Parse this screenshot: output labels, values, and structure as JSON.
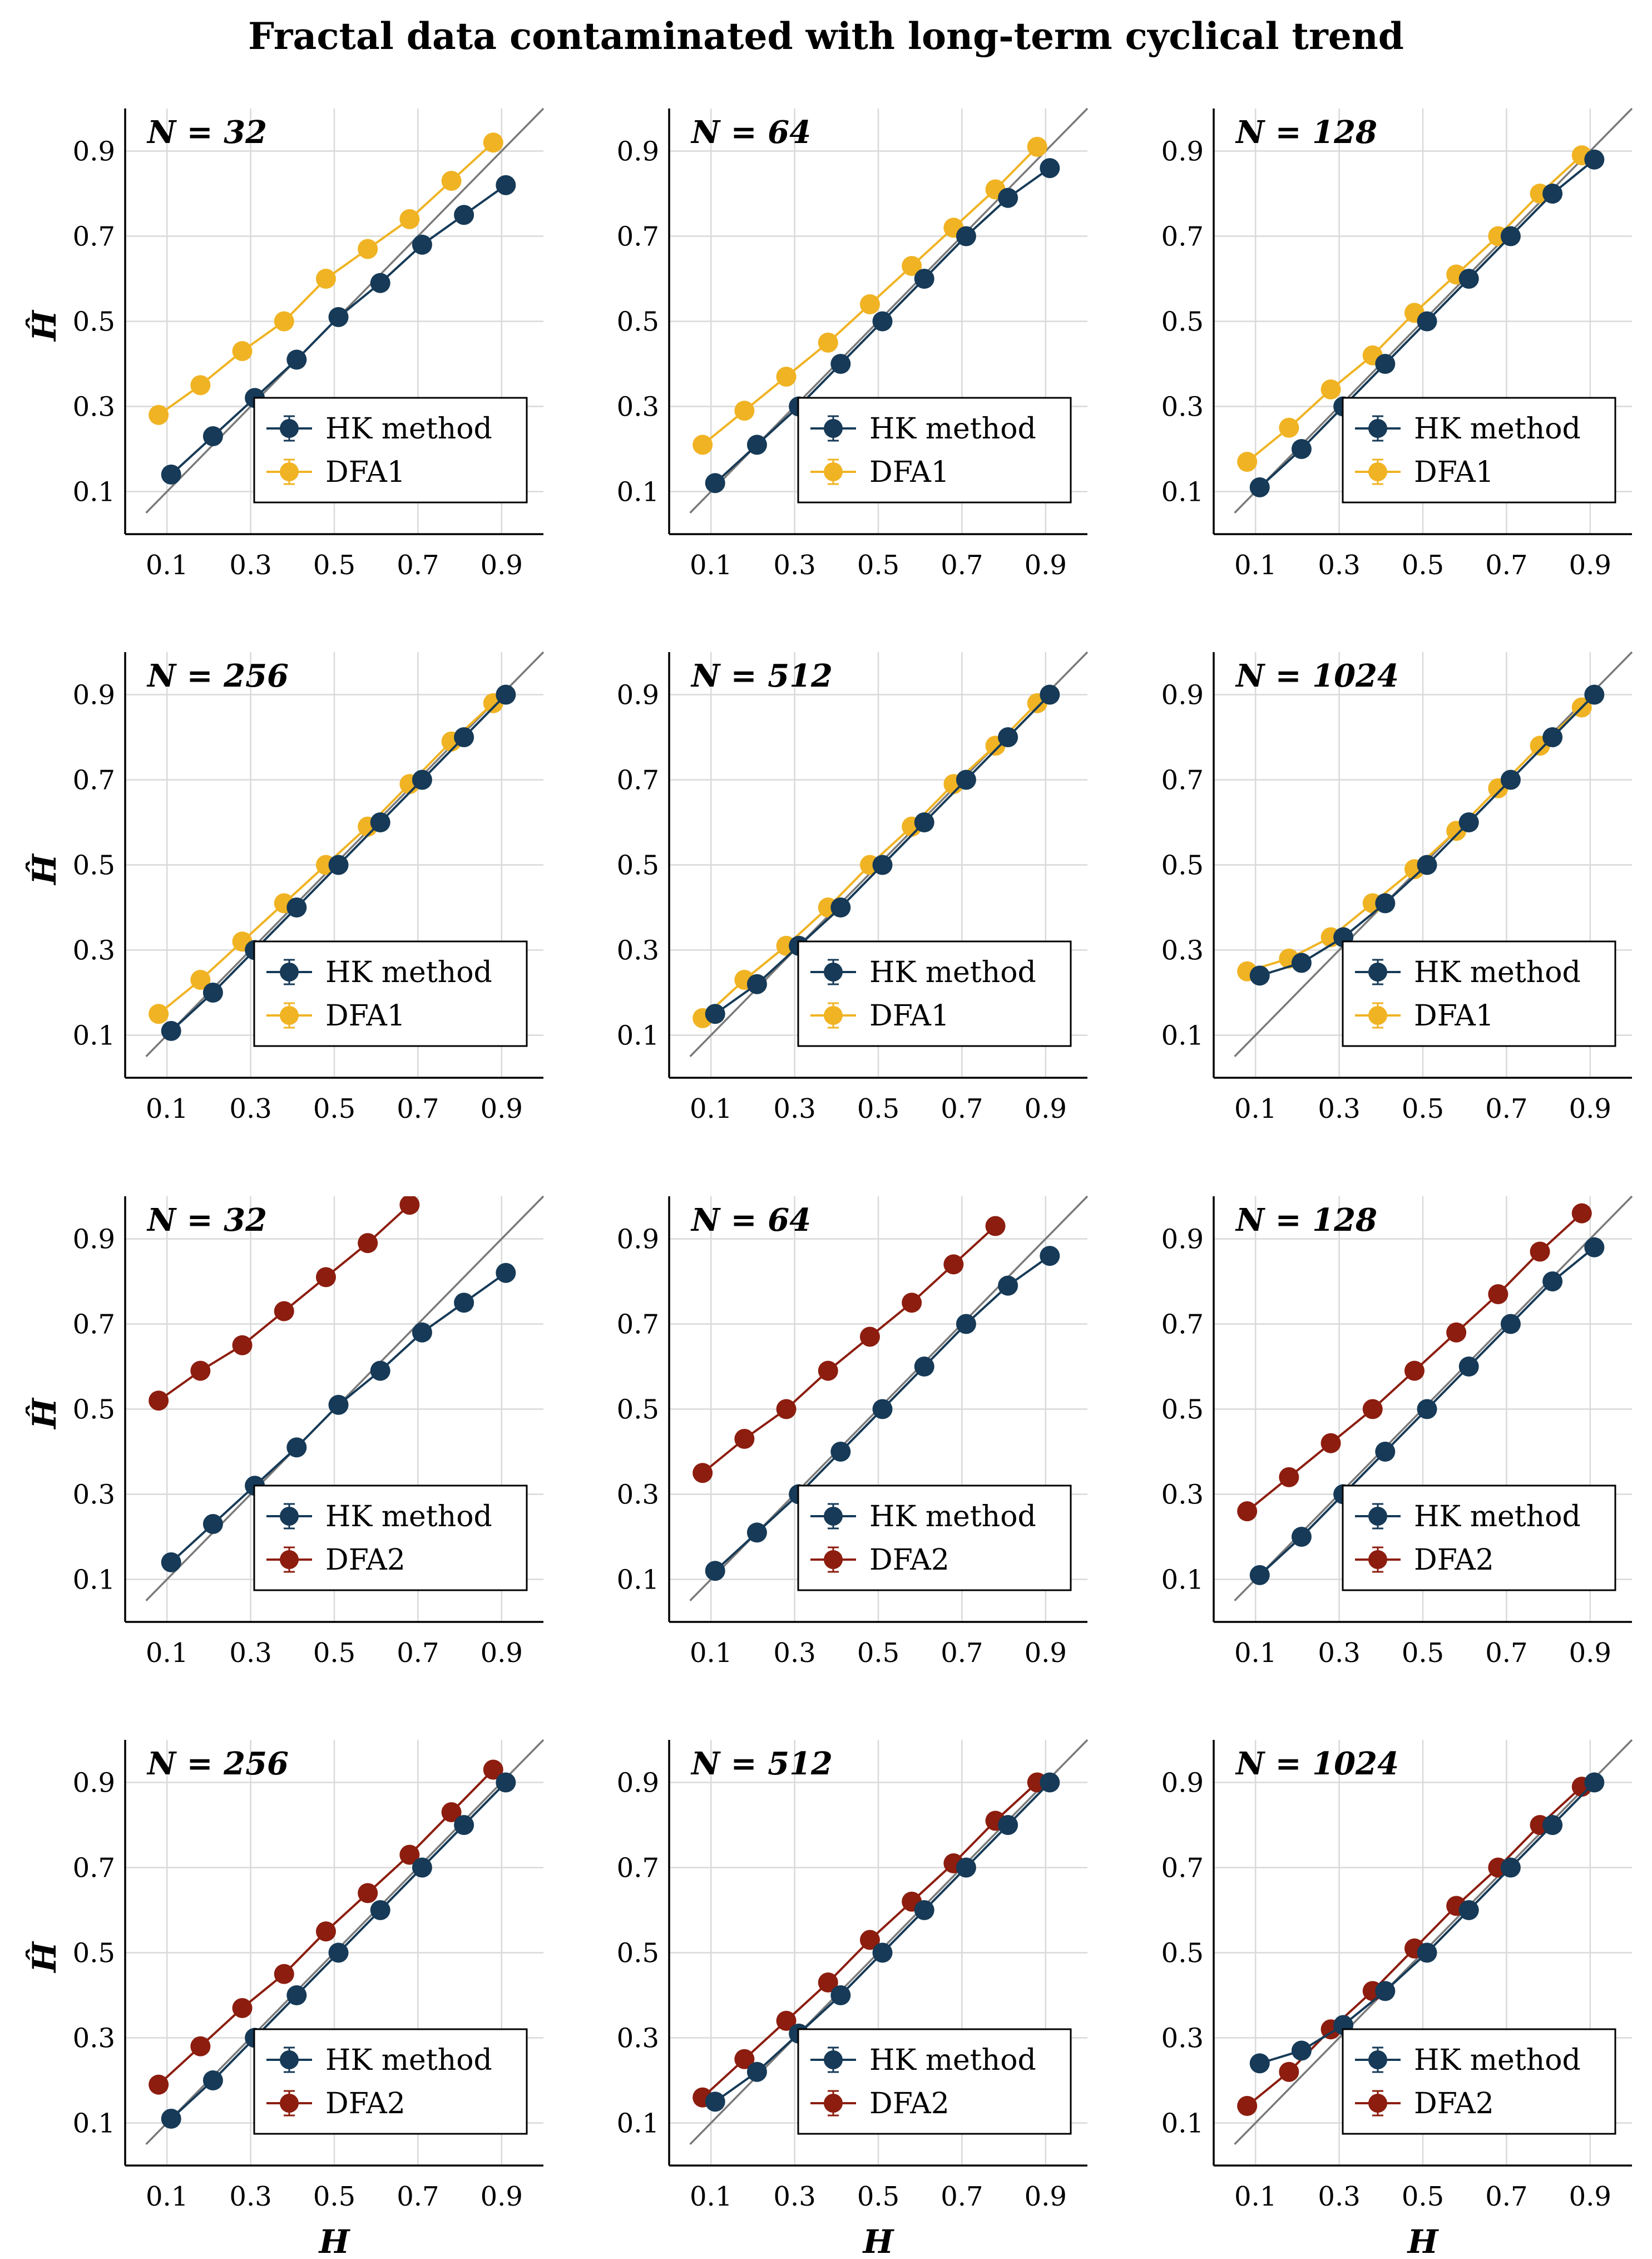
{
  "figure_title": "Fractal data contaminated with long-term cyclical trend",
  "colors": {
    "hk": "#163a57",
    "dfa1": "#f0b323",
    "dfa2": "#8c1d0f",
    "identity": "#7a7a7a",
    "grid": "#d9d9d9",
    "axis": "#000000"
  },
  "axis_labels": {
    "x": "H",
    "y": "Ĥ"
  },
  "tick_labels": [
    "0.1",
    "0.3",
    "0.5",
    "0.7",
    "0.9"
  ],
  "chart_data": [
    {
      "type": "line",
      "panel": "N = 32",
      "label": "N = 32",
      "xlim": [
        0,
        1
      ],
      "ylim": [
        0,
        1
      ],
      "xticks": [
        0.1,
        0.3,
        0.5,
        0.7,
        0.9
      ],
      "yticks": [
        0.1,
        0.3,
        0.5,
        0.7,
        0.9
      ],
      "series": [
        {
          "name": "HK method",
          "color_key": "hk",
          "x": [
            0.11,
            0.21,
            0.31,
            0.41,
            0.51,
            0.61,
            0.71,
            0.81,
            0.91
          ],
          "y": [
            0.14,
            0.23,
            0.32,
            0.41,
            0.51,
            0.59,
            0.68,
            0.75,
            0.82
          ]
        },
        {
          "name": "DFA1",
          "color_key": "dfa1",
          "x": [
            0.08,
            0.18,
            0.28,
            0.38,
            0.48,
            0.58,
            0.68,
            0.78,
            0.88
          ],
          "y": [
            0.28,
            0.35,
            0.43,
            0.5,
            0.6,
            0.67,
            0.74,
            0.83,
            0.92
          ]
        }
      ]
    },
    {
      "type": "line",
      "panel": "N = 64",
      "label": "N = 64",
      "xlim": [
        0,
        1
      ],
      "ylim": [
        0,
        1
      ],
      "xticks": [
        0.1,
        0.3,
        0.5,
        0.7,
        0.9
      ],
      "yticks": [
        0.1,
        0.3,
        0.5,
        0.7,
        0.9
      ],
      "series": [
        {
          "name": "HK method",
          "color_key": "hk",
          "x": [
            0.11,
            0.21,
            0.31,
            0.41,
            0.51,
            0.61,
            0.71,
            0.81,
            0.91
          ],
          "y": [
            0.12,
            0.21,
            0.3,
            0.4,
            0.5,
            0.6,
            0.7,
            0.79,
            0.86
          ]
        },
        {
          "name": "DFA1",
          "color_key": "dfa1",
          "x": [
            0.08,
            0.18,
            0.28,
            0.38,
            0.48,
            0.58,
            0.68,
            0.78,
            0.88
          ],
          "y": [
            0.21,
            0.29,
            0.37,
            0.45,
            0.54,
            0.63,
            0.72,
            0.81,
            0.91
          ]
        }
      ]
    },
    {
      "type": "line",
      "panel": "N = 128",
      "label": "N = 128",
      "xlim": [
        0,
        1
      ],
      "ylim": [
        0,
        1
      ],
      "xticks": [
        0.1,
        0.3,
        0.5,
        0.7,
        0.9
      ],
      "yticks": [
        0.1,
        0.3,
        0.5,
        0.7,
        0.9
      ],
      "series": [
        {
          "name": "HK method",
          "color_key": "hk",
          "x": [
            0.11,
            0.21,
            0.31,
            0.41,
            0.51,
            0.61,
            0.71,
            0.81,
            0.91
          ],
          "y": [
            0.11,
            0.2,
            0.3,
            0.4,
            0.5,
            0.6,
            0.7,
            0.8,
            0.88
          ]
        },
        {
          "name": "DFA1",
          "color_key": "dfa1",
          "x": [
            0.08,
            0.18,
            0.28,
            0.38,
            0.48,
            0.58,
            0.68,
            0.78,
            0.88
          ],
          "y": [
            0.17,
            0.25,
            0.34,
            0.42,
            0.52,
            0.61,
            0.7,
            0.8,
            0.89
          ]
        }
      ]
    },
    {
      "type": "line",
      "panel": "N = 256",
      "label": "N = 256",
      "xlim": [
        0,
        1
      ],
      "ylim": [
        0,
        1
      ],
      "xticks": [
        0.1,
        0.3,
        0.5,
        0.7,
        0.9
      ],
      "yticks": [
        0.1,
        0.3,
        0.5,
        0.7,
        0.9
      ],
      "series": [
        {
          "name": "HK method",
          "color_key": "hk",
          "x": [
            0.11,
            0.21,
            0.31,
            0.41,
            0.51,
            0.61,
            0.71,
            0.81,
            0.91
          ],
          "y": [
            0.11,
            0.2,
            0.3,
            0.4,
            0.5,
            0.6,
            0.7,
            0.8,
            0.9
          ]
        },
        {
          "name": "DFA1",
          "color_key": "dfa1",
          "x": [
            0.08,
            0.18,
            0.28,
            0.38,
            0.48,
            0.58,
            0.68,
            0.78,
            0.88
          ],
          "y": [
            0.15,
            0.23,
            0.32,
            0.41,
            0.5,
            0.59,
            0.69,
            0.79,
            0.88
          ]
        }
      ]
    },
    {
      "type": "line",
      "panel": "N = 512",
      "label": "N = 512",
      "xlim": [
        0,
        1
      ],
      "ylim": [
        0,
        1
      ],
      "xticks": [
        0.1,
        0.3,
        0.5,
        0.7,
        0.9
      ],
      "yticks": [
        0.1,
        0.3,
        0.5,
        0.7,
        0.9
      ],
      "series": [
        {
          "name": "HK method",
          "color_key": "hk",
          "x": [
            0.11,
            0.21,
            0.31,
            0.41,
            0.51,
            0.61,
            0.71,
            0.81,
            0.91
          ],
          "y": [
            0.15,
            0.22,
            0.31,
            0.4,
            0.5,
            0.6,
            0.7,
            0.8,
            0.9
          ]
        },
        {
          "name": "DFA1",
          "color_key": "dfa1",
          "x": [
            0.08,
            0.18,
            0.28,
            0.38,
            0.48,
            0.58,
            0.68,
            0.78,
            0.88
          ],
          "y": [
            0.14,
            0.23,
            0.31,
            0.4,
            0.5,
            0.59,
            0.69,
            0.78,
            0.88
          ]
        }
      ]
    },
    {
      "type": "line",
      "panel": "N = 1024",
      "label": "N = 1024",
      "xlim": [
        0,
        1
      ],
      "ylim": [
        0,
        1
      ],
      "xticks": [
        0.1,
        0.3,
        0.5,
        0.7,
        0.9
      ],
      "yticks": [
        0.1,
        0.3,
        0.5,
        0.7,
        0.9
      ],
      "series": [
        {
          "name": "HK method",
          "color_key": "hk",
          "x": [
            0.11,
            0.21,
            0.31,
            0.41,
            0.51,
            0.61,
            0.71,
            0.81,
            0.91
          ],
          "y": [
            0.24,
            0.27,
            0.33,
            0.41,
            0.5,
            0.6,
            0.7,
            0.8,
            0.9
          ]
        },
        {
          "name": "DFA1",
          "color_key": "dfa1",
          "x": [
            0.08,
            0.18,
            0.28,
            0.38,
            0.48,
            0.58,
            0.68,
            0.78,
            0.88
          ],
          "y": [
            0.25,
            0.28,
            0.33,
            0.41,
            0.49,
            0.58,
            0.68,
            0.78,
            0.87
          ]
        }
      ]
    },
    {
      "type": "line",
      "panel": "N = 32",
      "label": "N = 32",
      "xlim": [
        0,
        1
      ],
      "ylim": [
        0,
        1
      ],
      "xticks": [
        0.1,
        0.3,
        0.5,
        0.7,
        0.9
      ],
      "yticks": [
        0.1,
        0.3,
        0.5,
        0.7,
        0.9
      ],
      "series": [
        {
          "name": "HK method",
          "color_key": "hk",
          "x": [
            0.11,
            0.21,
            0.31,
            0.41,
            0.51,
            0.61,
            0.71,
            0.81,
            0.91
          ],
          "y": [
            0.14,
            0.23,
            0.32,
            0.41,
            0.51,
            0.59,
            0.68,
            0.75,
            0.82
          ]
        },
        {
          "name": "DFA2",
          "color_key": "dfa2",
          "x": [
            0.08,
            0.18,
            0.28,
            0.38,
            0.48,
            0.58,
            0.68
          ],
          "y": [
            0.52,
            0.59,
            0.65,
            0.73,
            0.81,
            0.89,
            0.98
          ]
        }
      ]
    },
    {
      "type": "line",
      "panel": "N = 64",
      "label": "N = 64",
      "xlim": [
        0,
        1
      ],
      "ylim": [
        0,
        1
      ],
      "xticks": [
        0.1,
        0.3,
        0.5,
        0.7,
        0.9
      ],
      "yticks": [
        0.1,
        0.3,
        0.5,
        0.7,
        0.9
      ],
      "series": [
        {
          "name": "HK method",
          "color_key": "hk",
          "x": [
            0.11,
            0.21,
            0.31,
            0.41,
            0.51,
            0.61,
            0.71,
            0.81,
            0.91
          ],
          "y": [
            0.12,
            0.21,
            0.3,
            0.4,
            0.5,
            0.6,
            0.7,
            0.79,
            0.86
          ]
        },
        {
          "name": "DFA2",
          "color_key": "dfa2",
          "x": [
            0.08,
            0.18,
            0.28,
            0.38,
            0.48,
            0.58,
            0.68,
            0.78
          ],
          "y": [
            0.35,
            0.43,
            0.5,
            0.59,
            0.67,
            0.75,
            0.84,
            0.93
          ]
        }
      ]
    },
    {
      "type": "line",
      "panel": "N = 128",
      "label": "N = 128",
      "xlim": [
        0,
        1
      ],
      "ylim": [
        0,
        1
      ],
      "xticks": [
        0.1,
        0.3,
        0.5,
        0.7,
        0.9
      ],
      "yticks": [
        0.1,
        0.3,
        0.5,
        0.7,
        0.9
      ],
      "series": [
        {
          "name": "HK method",
          "color_key": "hk",
          "x": [
            0.11,
            0.21,
            0.31,
            0.41,
            0.51,
            0.61,
            0.71,
            0.81,
            0.91
          ],
          "y": [
            0.11,
            0.2,
            0.3,
            0.4,
            0.5,
            0.6,
            0.7,
            0.8,
            0.88
          ]
        },
        {
          "name": "DFA2",
          "color_key": "dfa2",
          "x": [
            0.08,
            0.18,
            0.28,
            0.38,
            0.48,
            0.58,
            0.68,
            0.78,
            0.88
          ],
          "y": [
            0.26,
            0.34,
            0.42,
            0.5,
            0.59,
            0.68,
            0.77,
            0.87,
            0.96
          ]
        }
      ]
    },
    {
      "type": "line",
      "panel": "N = 256",
      "label": "N = 256",
      "xlim": [
        0,
        1
      ],
      "ylim": [
        0,
        1
      ],
      "xticks": [
        0.1,
        0.3,
        0.5,
        0.7,
        0.9
      ],
      "yticks": [
        0.1,
        0.3,
        0.5,
        0.7,
        0.9
      ],
      "series": [
        {
          "name": "HK method",
          "color_key": "hk",
          "x": [
            0.11,
            0.21,
            0.31,
            0.41,
            0.51,
            0.61,
            0.71,
            0.81,
            0.91
          ],
          "y": [
            0.11,
            0.2,
            0.3,
            0.4,
            0.5,
            0.6,
            0.7,
            0.8,
            0.9
          ]
        },
        {
          "name": "DFA2",
          "color_key": "dfa2",
          "x": [
            0.08,
            0.18,
            0.28,
            0.38,
            0.48,
            0.58,
            0.68,
            0.78,
            0.88
          ],
          "y": [
            0.19,
            0.28,
            0.37,
            0.45,
            0.55,
            0.64,
            0.73,
            0.83,
            0.93
          ]
        }
      ]
    },
    {
      "type": "line",
      "panel": "N = 512",
      "label": "N = 512",
      "xlim": [
        0,
        1
      ],
      "ylim": [
        0,
        1
      ],
      "xticks": [
        0.1,
        0.3,
        0.5,
        0.7,
        0.9
      ],
      "yticks": [
        0.1,
        0.3,
        0.5,
        0.7,
        0.9
      ],
      "series": [
        {
          "name": "HK method",
          "color_key": "hk",
          "x": [
            0.11,
            0.21,
            0.31,
            0.41,
            0.51,
            0.61,
            0.71,
            0.81,
            0.91
          ],
          "y": [
            0.15,
            0.22,
            0.31,
            0.4,
            0.5,
            0.6,
            0.7,
            0.8,
            0.9
          ]
        },
        {
          "name": "DFA2",
          "color_key": "dfa2",
          "x": [
            0.08,
            0.18,
            0.28,
            0.38,
            0.48,
            0.58,
            0.68,
            0.78,
            0.88
          ],
          "y": [
            0.16,
            0.25,
            0.34,
            0.43,
            0.53,
            0.62,
            0.71,
            0.81,
            0.9
          ]
        }
      ]
    },
    {
      "type": "line",
      "panel": "N = 1024",
      "label": "N = 1024",
      "xlim": [
        0,
        1
      ],
      "ylim": [
        0,
        1
      ],
      "xticks": [
        0.1,
        0.3,
        0.5,
        0.7,
        0.9
      ],
      "yticks": [
        0.1,
        0.3,
        0.5,
        0.7,
        0.9
      ],
      "series": [
        {
          "name": "HK method",
          "color_key": "hk",
          "x": [
            0.11,
            0.21,
            0.31,
            0.41,
            0.51,
            0.61,
            0.71,
            0.81,
            0.91
          ],
          "y": [
            0.24,
            0.27,
            0.33,
            0.41,
            0.5,
            0.6,
            0.7,
            0.8,
            0.9
          ]
        },
        {
          "name": "DFA2",
          "color_key": "dfa2",
          "x": [
            0.08,
            0.18,
            0.28,
            0.38,
            0.48,
            0.58,
            0.68,
            0.78,
            0.88
          ],
          "y": [
            0.14,
            0.22,
            0.32,
            0.41,
            0.51,
            0.61,
            0.7,
            0.8,
            0.89
          ]
        }
      ]
    }
  ]
}
